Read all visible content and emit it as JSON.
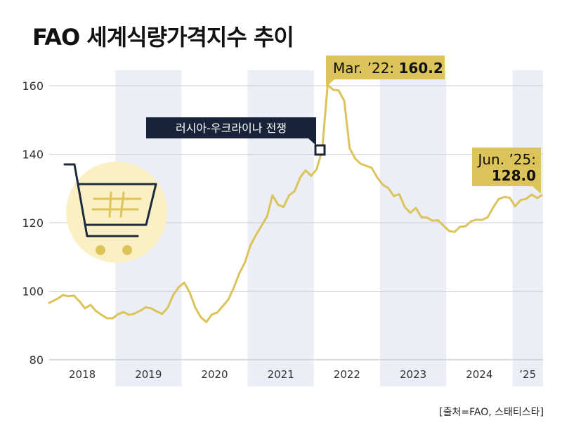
{
  "header": {
    "title": "FAO 세계식량가격지수 추이"
  },
  "footer": {
    "source": "[출처=FAO, 스태티스타]"
  },
  "colors": {
    "line": "#dcc35a",
    "band": "#eceef6",
    "grid": "#c9ccd6",
    "callout_gold": "#dcc35a",
    "callout_navy": "#18233a",
    "cart_circle": "#fbf0c4",
    "cart_outline": "#1e2a3e",
    "cart_accent": "#dcc35a"
  },
  "icons": {
    "cart": "shopping-cart-icon"
  },
  "annotations": {
    "peak": {
      "label": "Mar. ’22: ",
      "value": "160.2"
    },
    "last": {
      "label": "Jun. ’25:",
      "value": "128.0"
    },
    "event": {
      "label": "러시아-우크라이나 전쟁"
    }
  },
  "chart_data": {
    "type": "line",
    "title": "FAO 세계식량가격지수 추이",
    "xlabel": "",
    "ylabel": "",
    "ylim": [
      80,
      165
    ],
    "yticks": [
      80,
      100,
      120,
      140,
      160
    ],
    "x_tick_labels": [
      "2018",
      "2019",
      "2020",
      "2021",
      "2022",
      "2023",
      "2024",
      "’25"
    ],
    "grid": true,
    "shaded_years": [
      "2019",
      "2021",
      "2023",
      "2025"
    ],
    "series": [
      {
        "name": "",
        "x": [
          "2018-01",
          "2018-02",
          "2018-03",
          "2018-04",
          "2018-05",
          "2018-06",
          "2018-07",
          "2018-08",
          "2018-09",
          "2018-10",
          "2018-11",
          "2018-12",
          "2019-01",
          "2019-02",
          "2019-03",
          "2019-04",
          "2019-05",
          "2019-06",
          "2019-07",
          "2019-08",
          "2019-09",
          "2019-10",
          "2019-11",
          "2019-12",
          "2020-01",
          "2020-02",
          "2020-03",
          "2020-04",
          "2020-05",
          "2020-06",
          "2020-07",
          "2020-08",
          "2020-09",
          "2020-10",
          "2020-11",
          "2020-12",
          "2021-01",
          "2021-02",
          "2021-03",
          "2021-04",
          "2021-05",
          "2021-06",
          "2021-07",
          "2021-08",
          "2021-09",
          "2021-10",
          "2021-11",
          "2021-12",
          "2022-01",
          "2022-02",
          "2022-03",
          "2022-04",
          "2022-05",
          "2022-06",
          "2022-07",
          "2022-08",
          "2022-09",
          "2022-10",
          "2022-11",
          "2022-12",
          "2023-01",
          "2023-02",
          "2023-03",
          "2023-04",
          "2023-05",
          "2023-06",
          "2023-07",
          "2023-08",
          "2023-09",
          "2023-10",
          "2023-11",
          "2023-12",
          "2024-01",
          "2024-02",
          "2024-03",
          "2024-04",
          "2024-05",
          "2024-06",
          "2024-07",
          "2024-08",
          "2024-09",
          "2024-10",
          "2024-11",
          "2024-12",
          "2025-01",
          "2025-02",
          "2025-03",
          "2025-04",
          "2025-05",
          "2025-06"
        ],
        "values": [
          96.6,
          97.8,
          98.9,
          98.5,
          98.7,
          97.0,
          95.0,
          96.0,
          94.2,
          93.1,
          92.1,
          92.1,
          93.3,
          93.9,
          93.1,
          93.5,
          94.3,
          95.3,
          95.0,
          94.1,
          93.4,
          95.2,
          98.9,
          101.2,
          102.5,
          99.6,
          95.2,
          92.4,
          91.0,
          93.2,
          93.8,
          95.7,
          97.6,
          101.1,
          105.3,
          108.4,
          113.4,
          116.4,
          119.1,
          121.8,
          128.0,
          125.3,
          124.6,
          128.0,
          129.2,
          133.2,
          135.3,
          133.7,
          135.6,
          141.2,
          160.2,
          158.8,
          158.6,
          155.6,
          141.7,
          138.7,
          137.2,
          136.6,
          136.0,
          133.2,
          131.1,
          130.1,
          127.8,
          128.3,
          124.5,
          122.9,
          124.3,
          121.6,
          121.5,
          120.6,
          120.7,
          119.2,
          117.6,
          117.3,
          118.8,
          119.0,
          120.4,
          120.9,
          120.8,
          121.6,
          124.4,
          126.9,
          127.5,
          127.3,
          124.8,
          126.6,
          127.0,
          128.2,
          127.2,
          128.0
        ]
      }
    ],
    "annotations": [
      {
        "x": "2022-03",
        "y": 160.2,
        "text": "Mar. ’22: 160.2"
      },
      {
        "x": "2025-06",
        "y": 128.0,
        "text": "Jun. ’25: 128.0"
      },
      {
        "x": "2022-02",
        "y": 141.2,
        "text": "러시아-우크라이나 전쟁"
      }
    ]
  }
}
